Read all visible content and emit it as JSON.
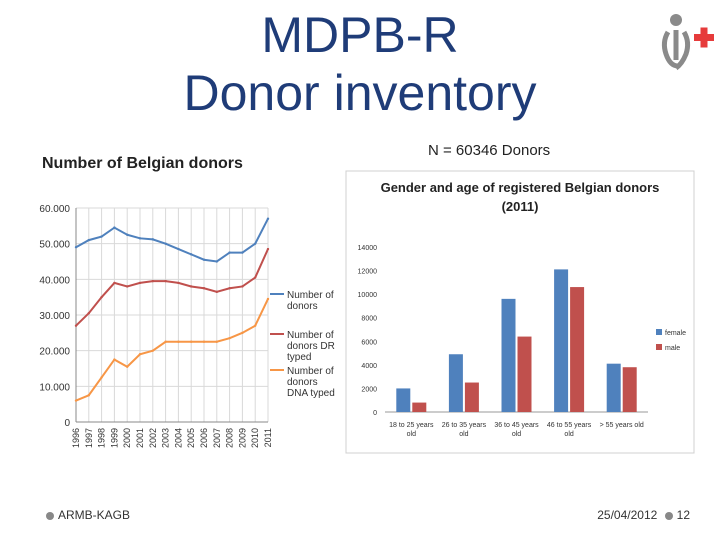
{
  "slide": {
    "title_line1": "MDPB-R",
    "title_line2": "Donor inventory",
    "count_label": "N = 60346 Donors",
    "footer_left": "ARMB-KAGB",
    "footer_date": "25/04/2012",
    "footer_page": "12"
  },
  "colors": {
    "title": "#1f3c78",
    "blue": "#4f81bd",
    "red": "#c0504d",
    "orange": "#f79646",
    "logo_red": "#e63b3b",
    "logo_gray": "#8a8a8a"
  },
  "chart_data": [
    {
      "type": "line",
      "title": "Number of Belgian donors",
      "x": [
        "1996",
        "1997",
        "1998",
        "1999",
        "2000",
        "2001",
        "2002",
        "2003",
        "2004",
        "2005",
        "2006",
        "2007",
        "2008",
        "2009",
        "2010",
        "2011"
      ],
      "ylim": [
        0,
        60000
      ],
      "yticks": [
        "0",
        "10.000",
        "20.000",
        "30.000",
        "40.000",
        "50.000",
        "60.000"
      ],
      "series": [
        {
          "name": "Number of donors",
          "values": [
            49000,
            51000,
            52000,
            54500,
            52500,
            51500,
            51200,
            50000,
            48500,
            47000,
            45500,
            45000,
            47500,
            47500,
            50000,
            57000
          ]
        },
        {
          "name": "Number of donors DR typed",
          "values": [
            27000,
            30500,
            35000,
            39000,
            38000,
            39000,
            39500,
            39500,
            39000,
            38000,
            37500,
            36500,
            37500,
            38000,
            40500,
            48500
          ]
        },
        {
          "name": "Number of donors DNA typed",
          "values": [
            6000,
            7500,
            12500,
            17500,
            15500,
            19000,
            20000,
            22500,
            22500,
            22500,
            22500,
            22500,
            23500,
            25000,
            27000,
            34500
          ]
        }
      ]
    },
    {
      "type": "bar",
      "title": "Gender and age of registered Belgian donors (2011)",
      "title_line1": "Gender and age of registered Belgian donors",
      "title_line2": "(2011)",
      "categories": [
        "18 to 25 years old",
        "26 to 35 years old",
        "36 to 45 years old",
        "46 to 55 years old",
        "> 55 years old"
      ],
      "category_lines": [
        [
          "18 to 25 years",
          "old"
        ],
        [
          "26 to 35 years",
          "old"
        ],
        [
          "36 to 45 years",
          "old"
        ],
        [
          "46 to 55 years",
          "old"
        ],
        [
          "> 55 years old",
          ""
        ]
      ],
      "ylim": [
        0,
        14000
      ],
      "yticks": [
        "0",
        "2000",
        "4000",
        "6000",
        "8000",
        "10000",
        "12000",
        "14000"
      ],
      "series": [
        {
          "name": "female",
          "values": [
            2000,
            4900,
            9600,
            12100,
            4100
          ]
        },
        {
          "name": "male",
          "values": [
            800,
            2500,
            6400,
            10600,
            3800
          ]
        }
      ]
    }
  ]
}
